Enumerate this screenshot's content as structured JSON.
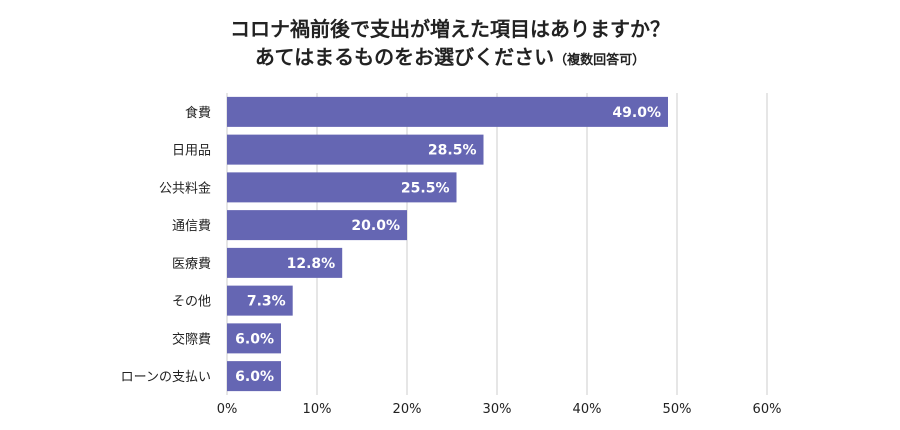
{
  "title": {
    "line1": "コロナ禍前後で支出が増えた項目はありますか？",
    "line2": "あてはまるものをお選びください",
    "note": "（複数回答可）"
  },
  "colors": {
    "bar": "#6566b3",
    "grid": "#cccccc",
    "label": "#ffffff"
  },
  "chart_data": {
    "type": "bar",
    "orientation": "horizontal",
    "categories": [
      "食費",
      "日用品",
      "公共料金",
      "通信費",
      "医療費",
      "その他",
      "交際費",
      "ローンの支払い"
    ],
    "values": [
      49.0,
      28.5,
      25.5,
      20.0,
      12.8,
      7.3,
      6.0,
      6.0
    ],
    "value_labels": [
      "49.0%",
      "28.5%",
      "25.5%",
      "20.0%",
      "12.8%",
      "7.3%",
      "6.0%",
      "6.0%"
    ],
    "xlim": [
      0,
      60
    ],
    "xticks": [
      0,
      10,
      20,
      30,
      40,
      50,
      60
    ],
    "xtick_labels": [
      "0%",
      "10%",
      "20%",
      "30%",
      "40%",
      "50%",
      "60%"
    ],
    "grid": true,
    "legend": "none"
  }
}
